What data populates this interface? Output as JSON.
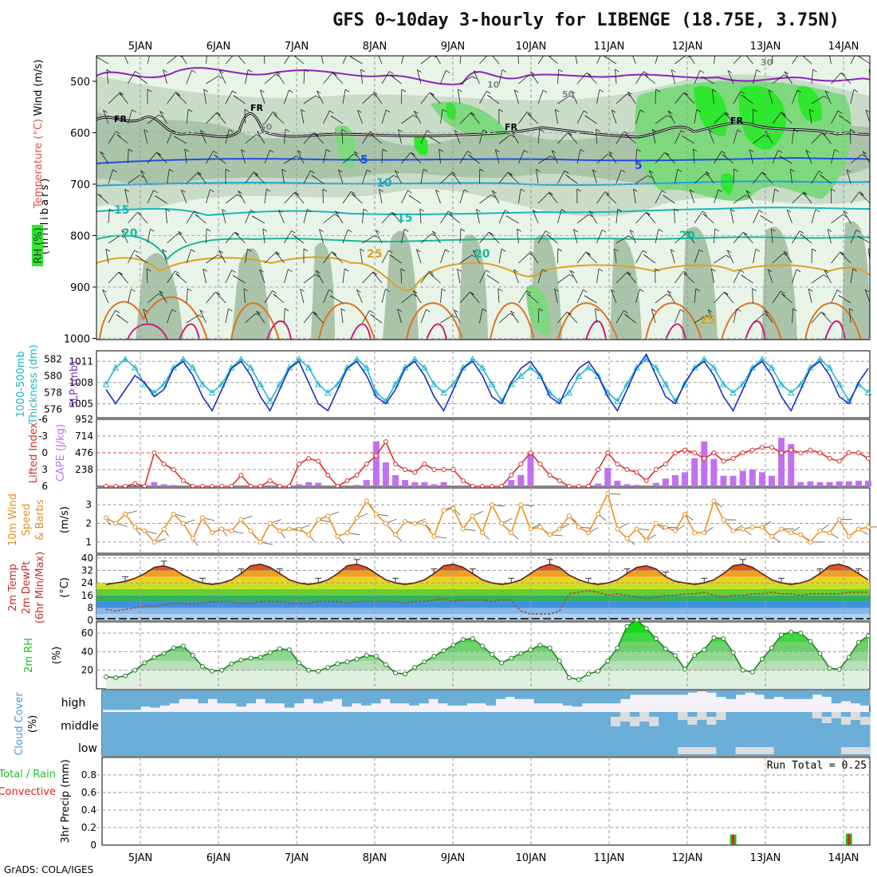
{
  "title": "GFS 0~10day 3-hourly for LIBENGE (18.75E, 3.75N)",
  "credit": "GrADS: COLA/IGES",
  "dates": [
    "5JAN",
    "6JAN",
    "7JAN",
    "8JAN",
    "9JAN",
    "10JAN",
    "11JAN",
    "12JAN",
    "13JAN",
    "14JAN"
  ],
  "colors": {
    "rh_dark": "#2ee82e",
    "rh_mid": "#7ed87e",
    "rh_light": "#a9c4a9",
    "rh_pale": "#e8f4e8",
    "temp_blue": "#2050e0",
    "temp_cyan": "#18a8d8",
    "temp_teal": "#18b898",
    "temp_orange": "#e0a020",
    "slp": "#1830c8",
    "thickness": "#20b8c8",
    "cape": "#c070f0",
    "lifted": "#d83030",
    "wind": "#e89020",
    "rh2m": "#20c020",
    "cloud": "#6aaed8",
    "precip_total": "#20c020",
    "precip_conv": "#e02020"
  },
  "panels": {
    "upper": {
      "axis_title": "(millibars)",
      "legend": [
        "RH (%)",
        "Temperature (°C)",
        "Wind (m/s)"
      ],
      "yticks": [
        "500",
        "600",
        "700",
        "800",
        "900",
        "1000"
      ],
      "contour_labels": [
        "FR",
        "FR",
        "FR",
        "FR",
        "5",
        "5",
        "10",
        "15",
        "15",
        "20",
        "20",
        "25",
        "25",
        "30",
        "10",
        "50",
        "50"
      ]
    },
    "slp": {
      "label_left": "Thickness (dm)",
      "label_left2": "1000-500mb",
      "label_right": "SLP (mb)",
      "ticks_left": [
        "582",
        "580",
        "578",
        "576"
      ],
      "ticks_right": [
        "1011",
        "1008",
        "1005"
      ]
    },
    "cape": {
      "label_left": "Lifted Index",
      "label_right": "CAPE (J/kg)",
      "ticks_left": [
        "-6",
        "-3",
        "0",
        "3",
        "6"
      ],
      "ticks_right": [
        "952",
        "714",
        "476",
        "238"
      ]
    },
    "wind": {
      "label1": "10m Wind",
      "label2": "Speed",
      "label3": "& Barbs",
      "unit": "(m/s)",
      "ticks": [
        "3",
        "2",
        "1"
      ]
    },
    "temp": {
      "label1": "2m Temp",
      "label2": "2m DewPt",
      "label3": "(6hr Min/Max)",
      "unit": "(°C)",
      "ticks": [
        "40",
        "32",
        "24",
        "16",
        "8",
        "0"
      ]
    },
    "rh2m": {
      "label": "2m RH",
      "unit": "(%)",
      "ticks": [
        "60",
        "40",
        "20"
      ]
    },
    "cloud": {
      "label": "Cloud Cover",
      "unit": "(%)",
      "rows": [
        "high",
        "middle",
        "low"
      ]
    },
    "precip": {
      "label1": "Total / Rain",
      "label2": "Convective",
      "label3": "3hr Precip (mm)",
      "ticks": [
        "0.8",
        "0.6",
        "0.4",
        "0.2",
        "0"
      ],
      "run_total": "Run Total = 0.25"
    }
  },
  "chart_data": [
    {
      "type": "line",
      "title": "Sea level pressure (mb)",
      "series_name": "SLP",
      "values": [
        1007,
        1005,
        1007,
        1009,
        1008,
        1006,
        1007,
        1010,
        1011,
        1009,
        1006,
        1004,
        1007,
        1010,
        1011,
        1009,
        1006,
        1004,
        1007,
        1010,
        1011,
        1008,
        1005,
        1004,
        1007,
        1010,
        1011,
        1009,
        1006,
        1005,
        1007,
        1010,
        1011,
        1009,
        1006,
        1004,
        1007,
        1010,
        1011,
        1009,
        1006,
        1005,
        1008,
        1010,
        1011,
        1009,
        1006,
        1005,
        1008,
        1010,
        1011,
        1009,
        1006,
        1004,
        1007,
        1010,
        1012,
        1009,
        1006,
        1005,
        1008,
        1010,
        1011,
        1009,
        1006,
        1004,
        1007,
        1010,
        1011,
        1009,
        1006,
        1004,
        1007,
        1010,
        1011,
        1009,
        1006,
        1005,
        1008,
        1010
      ],
      "ylim": [
        1003,
        1012.5
      ]
    },
    {
      "type": "line",
      "title": "1000-500mb thickness (dm)",
      "series_name": "Thickness",
      "values": [
        579,
        581,
        582,
        581,
        579,
        578,
        579,
        581,
        582,
        581,
        579,
        578,
        579,
        581,
        582,
        581,
        579,
        577,
        579,
        581,
        582,
        581,
        579,
        578,
        579,
        581,
        582,
        581,
        578,
        577,
        579,
        581,
        582,
        581,
        579,
        578,
        579,
        581,
        582,
        581,
        579,
        577,
        579,
        580,
        581,
        580,
        578,
        577,
        578,
        580,
        581,
        580,
        578,
        577,
        579,
        581,
        582,
        581,
        579,
        577,
        579,
        581,
        582,
        581,
        579,
        578,
        579,
        581,
        582,
        581,
        579,
        578,
        579,
        581,
        582,
        581,
        579,
        577,
        579,
        578
      ],
      "ylim": [
        575,
        583
      ]
    },
    {
      "type": "bar",
      "title": "CAPE (J/kg)",
      "values": [
        0,
        0,
        0,
        0,
        20,
        60,
        30,
        20,
        0,
        0,
        0,
        0,
        0,
        0,
        0,
        0,
        0,
        0,
        0,
        0,
        30,
        60,
        50,
        0,
        0,
        0,
        20,
        90,
        640,
        340,
        160,
        90,
        60,
        60,
        30,
        60,
        0,
        0,
        0,
        0,
        0,
        0,
        90,
        160,
        470,
        0,
        0,
        0,
        0,
        0,
        0,
        40,
        260,
        80,
        30,
        20,
        0,
        50,
        110,
        160,
        200,
        400,
        640,
        390,
        150,
        150,
        220,
        240,
        200,
        150,
        690,
        600,
        60,
        70,
        60,
        60,
        70,
        70,
        80,
        80
      ],
      "ylim": [
        0,
        952
      ]
    },
    {
      "type": "line",
      "title": "Lifted Index",
      "series_name": "Lifted Index",
      "values": [
        6,
        6,
        6,
        5.5,
        6,
        0,
        2,
        3,
        5,
        6,
        6,
        6,
        6,
        6,
        4,
        6,
        6,
        5,
        6,
        6,
        2,
        1,
        1.5,
        4,
        6,
        5,
        4,
        2,
        0.5,
        -2,
        2,
        3,
        3.5,
        2,
        3,
        3,
        3,
        5,
        6,
        6,
        6,
        6,
        4,
        2,
        0,
        2,
        4,
        5,
        6,
        6,
        6,
        3,
        0,
        2,
        3,
        3.5,
        5,
        3,
        2,
        0,
        -0.5,
        0,
        1,
        0,
        1.5,
        1,
        0,
        -0.5,
        -1,
        -1,
        0,
        -0.5,
        0,
        -0.5,
        0,
        1,
        1.5,
        0,
        0,
        1
      ],
      "ylim": [
        6,
        -6
      ]
    },
    {
      "type": "line",
      "title": "10m Wind Speed (m/s)",
      "series_name": "10m Wind",
      "values": [
        2.3,
        2,
        2.5,
        1.8,
        1.6,
        1,
        1.7,
        2.5,
        2,
        1.2,
        2.3,
        1.5,
        1.7,
        1.6,
        2.2,
        1.6,
        1,
        2,
        1.6,
        1.7,
        1.7,
        1.4,
        2.2,
        2.4,
        1.3,
        1.5,
        2.3,
        3.2,
        2.5,
        2,
        1.4,
        2.1,
        2,
        2,
        1.3,
        2.7,
        2.8,
        1.7,
        2.4,
        1.5,
        3,
        2,
        1.5,
        3,
        1.7,
        1.8,
        1.4,
        1.7,
        2.4,
        1.8,
        1.5,
        2.5,
        3.6,
        1.7,
        1.2,
        1.7,
        1.1,
        2,
        1.8,
        1.6,
        2.5,
        1.5,
        1.5,
        3.2,
        2.2,
        1.6,
        1.7,
        1.8,
        1.8,
        1.3,
        1.7,
        1.5,
        1.4,
        1,
        1.6,
        1.5,
        2.2,
        1.3,
        1.7,
        1.8
      ],
      "ylim": [
        0.4,
        3.9
      ]
    },
    {
      "type": "area",
      "title": "2m Temperature (°C)",
      "series_name": "2m Temp",
      "values": [
        23,
        24,
        25,
        27,
        30,
        34,
        35,
        33,
        29,
        26,
        24,
        23,
        24,
        26,
        30,
        35,
        36,
        34,
        30,
        26,
        24,
        23,
        24,
        26,
        30,
        35,
        36,
        34,
        30,
        26,
        24,
        23,
        24,
        26,
        30,
        35,
        36,
        34,
        30,
        26,
        24,
        23,
        24,
        26,
        30,
        34,
        36,
        34,
        29,
        26,
        24,
        23,
        24,
        26,
        30,
        34,
        35,
        33,
        28,
        25,
        24,
        23,
        24,
        26,
        30,
        35,
        36,
        34,
        30,
        26,
        24,
        23,
        24,
        26,
        30,
        35,
        36,
        34,
        30,
        26
      ],
      "ylim": [
        0,
        42
      ]
    },
    {
      "type": "line",
      "title": "2m Dew Point (°C)",
      "series_name": "2m DewPt",
      "values": [
        7,
        6,
        7,
        8,
        9,
        9,
        10,
        11,
        11,
        10,
        11,
        12,
        12,
        12,
        11,
        11,
        12,
        12,
        12,
        11,
        11,
        11,
        12,
        12,
        12,
        11,
        12,
        12,
        12,
        12,
        12,
        11,
        12,
        12,
        13,
        14,
        12,
        13,
        13,
        13,
        12,
        13,
        13,
        6,
        4,
        4,
        4,
        6,
        17,
        18,
        19,
        18,
        16,
        17,
        16,
        15,
        14,
        15,
        16,
        16,
        17,
        17,
        18,
        16,
        15,
        16,
        16,
        17,
        17,
        18,
        17,
        17,
        16,
        17,
        17,
        17,
        17,
        18,
        18,
        18
      ],
      "ylim": [
        0,
        42
      ]
    },
    {
      "type": "area",
      "title": "2m Relative Humidity (%)",
      "series_name": "2m RH",
      "values": [
        13,
        12,
        14,
        20,
        28,
        34,
        38,
        44,
        46,
        36,
        24,
        19,
        20,
        27,
        31,
        33,
        34,
        39,
        43,
        42,
        28,
        20,
        19,
        23,
        27,
        29,
        32,
        36,
        35,
        26,
        17,
        16,
        23,
        29,
        35,
        41,
        47,
        53,
        54,
        46,
        37,
        28,
        33,
        38,
        42,
        47,
        44,
        30,
        12,
        10,
        16,
        19,
        30,
        44,
        67,
        74,
        65,
        54,
        43,
        36,
        21,
        36,
        42,
        55,
        54,
        39,
        20,
        18,
        32,
        44,
        58,
        61,
        60,
        51,
        38,
        22,
        21,
        34,
        50,
        57
      ],
      "ylim": [
        0,
        72
      ]
    },
    {
      "type": "bar",
      "title": "Cloud cover high (%)",
      "values": [
        90,
        90,
        90,
        90,
        75,
        80,
        70,
        60,
        40,
        40,
        60,
        40,
        60,
        60,
        75,
        60,
        40,
        60,
        60,
        80,
        60,
        40,
        60,
        50,
        40,
        75,
        60,
        70,
        60,
        40,
        60,
        60,
        70,
        60,
        40,
        60,
        70,
        70,
        60,
        60,
        70,
        40,
        30,
        40,
        40,
        60,
        60,
        60,
        70,
        75,
        60,
        60,
        60,
        60,
        40,
        20,
        20,
        20,
        20,
        20,
        20,
        10,
        0,
        10,
        30,
        40,
        20,
        10,
        20,
        40,
        30,
        40,
        40,
        40,
        20,
        30,
        60,
        50,
        60,
        70
      ],
      "ylim": [
        0,
        100
      ]
    },
    {
      "type": "bar",
      "title": "Cloud cover middle (%)",
      "values": [
        100,
        100,
        100,
        100,
        100,
        100,
        100,
        100,
        100,
        100,
        100,
        100,
        100,
        100,
        100,
        100,
        100,
        100,
        100,
        100,
        100,
        100,
        100,
        100,
        100,
        100,
        100,
        100,
        100,
        100,
        100,
        100,
        100,
        100,
        100,
        100,
        100,
        100,
        100,
        100,
        100,
        100,
        100,
        100,
        100,
        100,
        100,
        100,
        100,
        100,
        100,
        100,
        100,
        100,
        100,
        100,
        100,
        100,
        100,
        100,
        100,
        100,
        100,
        100,
        100,
        100,
        100,
        100,
        100,
        100,
        100,
        100,
        100,
        100,
        100,
        100,
        100,
        100,
        100,
        100
      ],
      "ylim": [
        0,
        100
      ]
    },
    {
      "type": "bar",
      "title": "3hr precip (mm)",
      "values": [
        0,
        0,
        0,
        0,
        0,
        0,
        0,
        0,
        0,
        0,
        0,
        0,
        0,
        0,
        0,
        0,
        0,
        0,
        0,
        0,
        0,
        0,
        0,
        0,
        0,
        0,
        0,
        0,
        0,
        0,
        0,
        0,
        0,
        0,
        0,
        0,
        0,
        0,
        0,
        0,
        0,
        0,
        0,
        0,
        0,
        0,
        0,
        0,
        0,
        0,
        0,
        0,
        0,
        0,
        0,
        0,
        0,
        0,
        0,
        0,
        0,
        0,
        0,
        0,
        0,
        0.12,
        0,
        0,
        0,
        0,
        0,
        0,
        0,
        0,
        0,
        0,
        0,
        0.13,
        0,
        0
      ],
      "ylim": [
        0,
        1
      ]
    }
  ]
}
